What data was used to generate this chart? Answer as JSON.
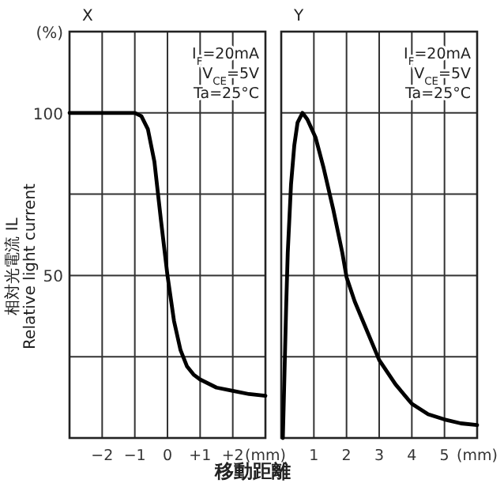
{
  "chart_data": [
    {
      "type": "line",
      "title": "X",
      "ylabel": "相対光電流 IL\nRelative light current",
      "xlim": [
        -3,
        3
      ],
      "xticks": [
        {
          "value": -2,
          "label": "−2"
        },
        {
          "value": -1,
          "label": "−1"
        },
        0,
        {
          "value": 1,
          "label": "+1"
        },
        {
          "value": 2,
          "label": "+2"
        },
        {
          "value": 3,
          "label": "(mm)"
        }
      ],
      "ylim": [
        0,
        125
      ],
      "yticks": [
        {
          "value": 25,
          "label": null
        },
        50,
        {
          "value": 75,
          "label": null
        },
        100,
        {
          "value": 125,
          "label": "(%)"
        }
      ],
      "grid": true,
      "marker": "none",
      "line_style": "solid",
      "annotations": [
        "I$_{F}$=20mA",
        "V$_{CE}$=5V",
        "Ta=25°C"
      ],
      "series": [
        {
          "color": "#000000",
          "x": [
            -3,
            -1,
            -0.8,
            -0.6,
            -0.4,
            -0.2,
            0,
            0.2,
            0.4,
            0.6,
            0.8,
            1,
            1.5,
            2,
            2.5,
            3
          ],
          "values": [
            100,
            100,
            99,
            95,
            85,
            67,
            50,
            36,
            27,
            22,
            19.5,
            18,
            15.5,
            14.5,
            13.5,
            13
          ]
        }
      ]
    },
    {
      "type": "line",
      "title": "Y",
      "xlabel": "移動距離",
      "xlim": [
        0,
        6
      ],
      "xticks": [
        1,
        2,
        3,
        4,
        5,
        {
          "value": 6,
          "label": "(mm)"
        }
      ],
      "ylim": [
        0,
        125
      ],
      "yticks": [
        25,
        50,
        75,
        100,
        125
      ],
      "tick_labels": "x",
      "grid": true,
      "marker": "none",
      "line_style": "solid",
      "annotations": [
        "I$_{F}$=20mA",
        "V$_{CE}$=5V",
        "Ta=25°C"
      ],
      "series": [
        {
          "color": "#000000",
          "x": [
            0.05,
            0.1,
            0.15,
            0.2,
            0.3,
            0.4,
            0.5,
            0.65,
            0.8,
            1.05,
            1.3,
            1.6,
            1.87,
            2,
            2.25,
            2.5,
            3,
            3.5,
            4,
            4.5,
            5,
            5.5,
            6
          ],
          "values": [
            0,
            20,
            40,
            57,
            78,
            90,
            97,
            100,
            98,
            92.5,
            83,
            70,
            57,
            49.5,
            42,
            36,
            24,
            16.5,
            10.5,
            7.3,
            5.7,
            4.5,
            4
          ]
        }
      ]
    }
  ]
}
